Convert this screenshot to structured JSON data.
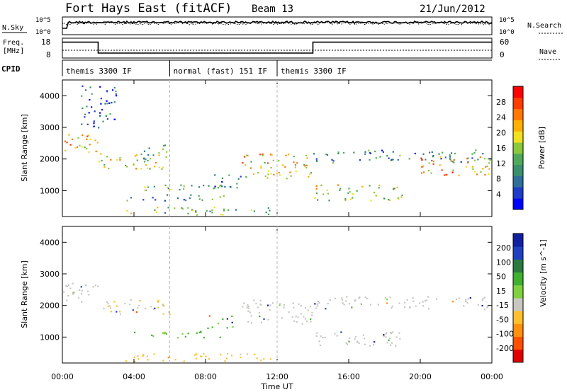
{
  "header": {
    "station": "Fort Hays East (fitACF)",
    "beam": "Beam 13",
    "date": "21/Jun/2012"
  },
  "panels": {
    "nsky_label": "N.Sky",
    "nsearch_label": "N.Search",
    "freq_label_1": "Freq.",
    "freq_label_2": "[MHz]",
    "nave_label": "Nave",
    "cpid_label": "CPID",
    "nsky_ticks": [
      "10^5",
      "10^0"
    ],
    "nsearch_ticks": [
      "10^5",
      "10^0"
    ],
    "freq_ticks": [
      "18",
      "8"
    ],
    "nave_ticks": [
      "60",
      "0"
    ]
  },
  "cpid_segments": [
    {
      "label": "themis 3300 IF",
      "start_hour": 0,
      "end_hour": 6
    },
    {
      "label": "normal (fast) 151 IF",
      "start_hour": 6,
      "end_hour": 12
    },
    {
      "label": "themis 3300 IF",
      "start_hour": 12,
      "end_hour": 24
    }
  ],
  "power_colorbar": {
    "label": "Power [dB]",
    "ticks": [
      "28",
      "24",
      "20",
      "16",
      "12",
      "8",
      "4"
    ],
    "colors": [
      "#0000ff",
      "#1e3cc8",
      "#2f6f9a",
      "#3b8f6c",
      "#50a85a",
      "#8cc83c",
      "#f0e020",
      "#ffb000",
      "#ff7800",
      "#ff3c00",
      "#ff0000"
    ]
  },
  "velocity_colorbar": {
    "label": "Velocity [m s^-1]",
    "ticks": [
      "200",
      "100",
      "50",
      "15",
      "-15",
      "-50",
      "-100",
      "-200"
    ],
    "colors": [
      "#1020a0",
      "#2040c0",
      "#2a7a40",
      "#40b030",
      "#80d040",
      "#c8c8c0",
      "#ffc030",
      "#ff9010",
      "#ff5000",
      "#e00000"
    ]
  },
  "chart_data": [
    {
      "type": "line",
      "name": "frequency",
      "x_hours": [
        0,
        2,
        2,
        6,
        6,
        12,
        12,
        14,
        14,
        24
      ],
      "y_mhz": [
        16,
        16,
        10.5,
        10.5,
        10.5,
        10.5,
        10.5,
        10.5,
        16,
        16
      ],
      "ylim": [
        8,
        18
      ]
    },
    {
      "type": "heatmap",
      "title": "Power",
      "xlabel": "Time UT",
      "ylabel": "Slant Range [km]",
      "xlim": [
        0,
        24
      ],
      "ylim": [
        180,
        4500
      ],
      "x_ticks": [
        "00:00",
        "04:00",
        "08:00",
        "12:00",
        "16:00",
        "20:00",
        "00:00"
      ],
      "y_ticks": [
        1000,
        2000,
        3000,
        4000
      ],
      "scatter_bands": [
        {
          "t": [
            0,
            2
          ],
          "r": [
            2100,
            2800
          ],
          "v": 20
        },
        {
          "t": [
            2,
            6
          ],
          "r": [
            1700,
            2200
          ],
          "v": 18
        },
        {
          "t": [
            4.5,
            6
          ],
          "r": [
            2000,
            2500
          ],
          "v": 14
        },
        {
          "t": [
            3.5,
            9
          ],
          "r": [
            1000,
            1200
          ],
          "v": 14
        },
        {
          "t": [
            3.5,
            9
          ],
          "r": [
            700,
            900
          ],
          "v": 10
        },
        {
          "t": [
            3.5,
            12
          ],
          "r": [
            250,
            500
          ],
          "v": 14
        },
        {
          "t": [
            8,
            10
          ],
          "r": [
            1100,
            1600
          ],
          "v": 8
        },
        {
          "t": [
            10,
            14
          ],
          "r": [
            1400,
            2200
          ],
          "v": 20
        },
        {
          "t": [
            14,
            19
          ],
          "r": [
            700,
            1200
          ],
          "v": 18
        },
        {
          "t": [
            14,
            24
          ],
          "r": [
            1900,
            2300
          ],
          "v": 10
        },
        {
          "t": [
            20,
            24
          ],
          "r": [
            1500,
            2100
          ],
          "v": 22
        },
        {
          "t": [
            1,
            3
          ],
          "r": [
            3000,
            4400
          ],
          "v": 6
        }
      ]
    },
    {
      "type": "heatmap",
      "title": "Velocity",
      "xlabel": "Time UT",
      "ylabel": "Slant Range [km]",
      "xlim": [
        0,
        24
      ],
      "ylim": [
        180,
        4500
      ],
      "x_ticks": [
        "00:00",
        "04:00",
        "08:00",
        "12:00",
        "16:00",
        "20:00",
        "00:00"
      ],
      "y_ticks": [
        1000,
        2000,
        3000,
        4000
      ],
      "scatter_bands": [
        {
          "t": [
            0,
            2
          ],
          "r": [
            2100,
            2800
          ],
          "v": 0
        },
        {
          "t": [
            2,
            6
          ],
          "r": [
            1700,
            2200
          ],
          "v": -10
        },
        {
          "t": [
            3.5,
            9
          ],
          "r": [
            1000,
            1200
          ],
          "v": 40
        },
        {
          "t": [
            3.5,
            12
          ],
          "r": [
            250,
            500
          ],
          "v": -30
        },
        {
          "t": [
            8,
            9.5
          ],
          "r": [
            1300,
            1700
          ],
          "v": 40
        },
        {
          "t": [
            10,
            14
          ],
          "r": [
            1400,
            2200
          ],
          "v": 0
        },
        {
          "t": [
            14,
            19
          ],
          "r": [
            700,
            1200
          ],
          "v": 0
        },
        {
          "t": [
            14,
            24
          ],
          "r": [
            1900,
            2300
          ],
          "v": 0
        }
      ]
    }
  ],
  "axis": {
    "x_label": "Time UT",
    "y_label": "Slant Range [km]"
  }
}
